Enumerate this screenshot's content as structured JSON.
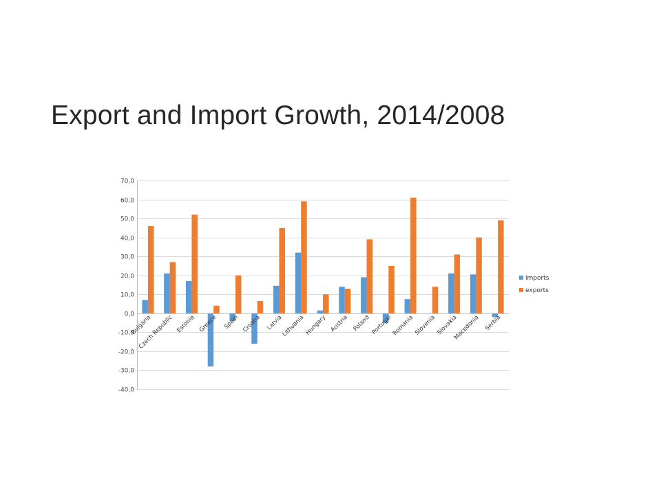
{
  "slide": {
    "title": "Export and Import Growth, 2014/2008"
  },
  "colors": {
    "imports": "#5b9bd5",
    "exports": "#ed7d31",
    "grid": "#d9d9d9",
    "axis": "#bfbfbf"
  },
  "chart_data": {
    "type": "bar",
    "title": "",
    "xlabel": "",
    "ylabel": "",
    "ylim": [
      -40,
      70
    ],
    "yticks": [
      70,
      60,
      50,
      40,
      30,
      20,
      10,
      0,
      -10,
      -20,
      -30,
      -40
    ],
    "ytick_labels": [
      "70,0",
      "60,0",
      "50,0",
      "40,0",
      "30,0",
      "20,0",
      "10,0",
      "0,0",
      "-10,0",
      "-20,0",
      "-30,0",
      "-40,0"
    ],
    "grid": true,
    "legend_position": "right",
    "categories": [
      "Bulgaria",
      "Czech Republic",
      "Estonia",
      "Greece",
      "Spain",
      "Croatia",
      "Latvia",
      "Lithuania",
      "Hungary",
      "Austria",
      "Poland",
      "Portugal",
      "Romania",
      "Slovenia",
      "Slovakia",
      "Macedonia",
      "Serbia"
    ],
    "series": [
      {
        "name": "imports",
        "values": [
          7,
          21,
          17,
          -28,
          -4,
          -16,
          14.5,
          32,
          1.5,
          14,
          19,
          -5,
          7.5,
          0,
          21,
          20.5,
          -2
        ]
      },
      {
        "name": "exports",
        "values": [
          46,
          27,
          52,
          4,
          20,
          6.5,
          45,
          59,
          10,
          13,
          39,
          25,
          61,
          14,
          31,
          40,
          49
        ]
      }
    ]
  }
}
